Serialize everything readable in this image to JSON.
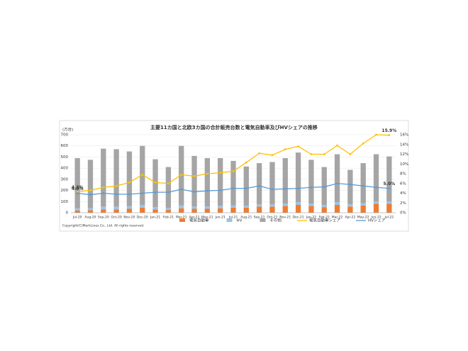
{
  "chart_data": {
    "type": "bar",
    "title": "主要11カ国と北欧3カ国の合計販売台数と電気自動車及びHVシェアの推移",
    "y_unit": "(万台)",
    "footnote": "Copyright(C)MarkLines Co., Ltd. All rights reserved.",
    "categories": [
      "Jul-20",
      "Aug-20",
      "Sep-20",
      "Oct-20",
      "Nov-20",
      "Dec-20",
      "Jan-21",
      "Feb-21",
      "Mar-21",
      "Apr-21",
      "May-21",
      "Jun-21",
      "Jul-21",
      "Aug-21",
      "Sep-21",
      "Oct-21",
      "Nov-21",
      "Dec-21",
      "Jan-22",
      "Feb-22",
      "Mar-22",
      "Apr-22",
      "May-22",
      "Jun-22",
      "Jul-22"
    ],
    "series": [
      {
        "name": "電気自動車",
        "color": "#ed7d31",
        "values": [
          20,
          22,
          30,
          30,
          35,
          45,
          30,
          25,
          40,
          35,
          35,
          40,
          45,
          45,
          55,
          55,
          60,
          70,
          60,
          50,
          70,
          55,
          65,
          80,
          80
        ]
      },
      {
        "name": "HV",
        "color": "#9dc3e6",
        "values": [
          20,
          20,
          25,
          25,
          25,
          25,
          20,
          18,
          25,
          22,
          22,
          22,
          20,
          18,
          20,
          20,
          22,
          24,
          22,
          20,
          25,
          20,
          20,
          22,
          22
        ]
      },
      {
        "name": "その他",
        "color": "#a5a5a5",
        "values": [
          450,
          433,
          520,
          515,
          490,
          530,
          430,
          367,
          535,
          453,
          433,
          428,
          400,
          352,
          370,
          380,
          408,
          446,
          393,
          340,
          430,
          310,
          360,
          423,
          403
        ]
      },
      {
        "name": "電気自動車シェア",
        "color": "#ffc000",
        "axis": "y2",
        "values": [
          4.3,
          4.6,
          5.2,
          5.5,
          6.2,
          7.8,
          6.2,
          6.0,
          7.8,
          7.5,
          8.0,
          8.2,
          8.5,
          10.3,
          12.2,
          11.8,
          13.0,
          13.6,
          12.0,
          12.0,
          13.8,
          12.0,
          14.2,
          16.0,
          15.9
        ],
        "value_labels": [
          "4.3%",
          null,
          null,
          null,
          null,
          null,
          null,
          null,
          null,
          null,
          null,
          null,
          null,
          null,
          null,
          null,
          null,
          null,
          null,
          null,
          null,
          null,
          null,
          null,
          "15.9%"
        ]
      },
      {
        "name": "HVシェア",
        "color": "#5b9bd5",
        "axis": "y2",
        "values": [
          4.0,
          3.7,
          4.0,
          3.8,
          3.8,
          4.0,
          4.2,
          4.2,
          4.8,
          4.3,
          4.5,
          4.6,
          5.0,
          5.0,
          5.5,
          4.8,
          4.9,
          5.0,
          5.2,
          5.3,
          6.0,
          5.8,
          5.5,
          5.2,
          5.0
        ],
        "value_labels": [
          "4.0%",
          null,
          null,
          null,
          null,
          null,
          null,
          null,
          null,
          null,
          null,
          null,
          null,
          null,
          null,
          null,
          null,
          null,
          null,
          null,
          null,
          null,
          null,
          null,
          "5.0%"
        ]
      }
    ],
    "ylim": [
      0,
      700
    ],
    "yticks": [
      0,
      100,
      200,
      300,
      400,
      500,
      600,
      700
    ],
    "y2lim": [
      0,
      16
    ],
    "y2ticks": [
      {
        "value": 0,
        "label": "0%"
      },
      {
        "value": 2,
        "label": "2%"
      },
      {
        "value": 4,
        "label": "4%"
      },
      {
        "value": 6,
        "label": "6%"
      },
      {
        "value": 8,
        "label": "8%"
      },
      {
        "value": 10,
        "label": "10%"
      },
      {
        "value": 12,
        "label": "12%"
      },
      {
        "value": 14,
        "label": "14%"
      },
      {
        "value": 16,
        "label": "16%"
      }
    ],
    "grid": true
  }
}
